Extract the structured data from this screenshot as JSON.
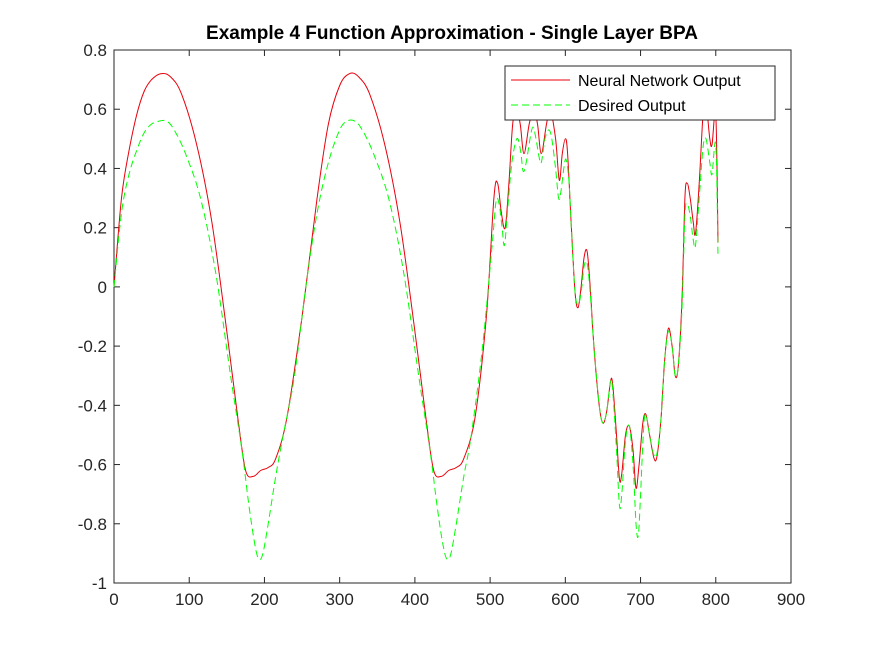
{
  "chart_data": {
    "type": "line",
    "title": "Example 4 Function Approximation - Single Layer BPA",
    "xlabel": "",
    "ylabel": "",
    "xlim": [
      0,
      900
    ],
    "ylim": [
      -1,
      0.8
    ],
    "xticks": [
      0,
      100,
      200,
      300,
      400,
      500,
      600,
      700,
      800,
      900
    ],
    "yticks": [
      -1,
      -0.8,
      -0.6,
      -0.4,
      -0.2,
      0,
      0.2,
      0.4,
      0.6,
      0.8
    ],
    "xtick_labels": [
      "0",
      "100",
      "200",
      "300",
      "400",
      "500",
      "600",
      "700",
      "800",
      "900"
    ],
    "ytick_labels": [
      "-1",
      "-0.8",
      "-0.6",
      "-0.4",
      "-0.2",
      "0",
      "0.2",
      "0.4",
      "0.6",
      "0.8"
    ],
    "grid": false,
    "legend": {
      "position": "top-right"
    },
    "series": [
      {
        "name": "Neural Network Output",
        "color": "#e8000b",
        "style": "solid",
        "points": [
          [
            0,
            0.0
          ],
          [
            10,
            0.3
          ],
          [
            20,
            0.46
          ],
          [
            30,
            0.58
          ],
          [
            40,
            0.66
          ],
          [
            50,
            0.7
          ],
          [
            62,
            0.72
          ],
          [
            75,
            0.71
          ],
          [
            90,
            0.65
          ],
          [
            110,
            0.48
          ],
          [
            130,
            0.22
          ],
          [
            150,
            -0.15
          ],
          [
            165,
            -0.45
          ],
          [
            175,
            -0.62
          ],
          [
            185,
            -0.64
          ],
          [
            195,
            -0.62
          ],
          [
            205,
            -0.61
          ],
          [
            215,
            -0.58
          ],
          [
            230,
            -0.44
          ],
          [
            250,
            -0.1
          ],
          [
            270,
            0.3
          ],
          [
            285,
            0.55
          ],
          [
            300,
            0.68
          ],
          [
            313,
            0.72
          ],
          [
            325,
            0.71
          ],
          [
            340,
            0.65
          ],
          [
            360,
            0.48
          ],
          [
            380,
            0.22
          ],
          [
            400,
            -0.15
          ],
          [
            415,
            -0.45
          ],
          [
            425,
            -0.62
          ],
          [
            435,
            -0.64
          ],
          [
            445,
            -0.62
          ],
          [
            455,
            -0.61
          ],
          [
            465,
            -0.58
          ],
          [
            480,
            -0.44
          ],
          [
            495,
            -0.1
          ],
          [
            505,
            0.3
          ],
          [
            510,
            0.35
          ],
          [
            515,
            0.25
          ],
          [
            520,
            0.2
          ],
          [
            525,
            0.35
          ],
          [
            530,
            0.55
          ],
          [
            535,
            0.6
          ],
          [
            540,
            0.55
          ],
          [
            545,
            0.45
          ],
          [
            552,
            0.55
          ],
          [
            558,
            0.6
          ],
          [
            563,
            0.55
          ],
          [
            568,
            0.45
          ],
          [
            575,
            0.55
          ],
          [
            580,
            0.6
          ],
          [
            587,
            0.5
          ],
          [
            592,
            0.36
          ],
          [
            596,
            0.45
          ],
          [
            600,
            0.5
          ],
          [
            603,
            0.45
          ],
          [
            608,
            0.2
          ],
          [
            613,
            -0.02
          ],
          [
            617,
            -0.07
          ],
          [
            621,
            0.0
          ],
          [
            625,
            0.1
          ],
          [
            629,
            0.12
          ],
          [
            633,
            0.0
          ],
          [
            638,
            -0.2
          ],
          [
            645,
            -0.4
          ],
          [
            650,
            -0.46
          ],
          [
            655,
            -0.42
          ],
          [
            660,
            -0.32
          ],
          [
            663,
            -0.33
          ],
          [
            668,
            -0.5
          ],
          [
            672,
            -0.65
          ],
          [
            675,
            -0.63
          ],
          [
            680,
            -0.5
          ],
          [
            685,
            -0.47
          ],
          [
            690,
            -0.55
          ],
          [
            694,
            -0.68
          ],
          [
            698,
            -0.6
          ],
          [
            703,
            -0.46
          ],
          [
            707,
            -0.43
          ],
          [
            712,
            -0.5
          ],
          [
            718,
            -0.58
          ],
          [
            722,
            -0.57
          ],
          [
            727,
            -0.45
          ],
          [
            732,
            -0.25
          ],
          [
            737,
            -0.14
          ],
          [
            742,
            -0.2
          ],
          [
            746,
            -0.3
          ],
          [
            750,
            -0.27
          ],
          [
            755,
            -0.05
          ],
          [
            759,
            0.3
          ],
          [
            762,
            0.35
          ],
          [
            766,
            0.3
          ],
          [
            770,
            0.22
          ],
          [
            773,
            0.18
          ],
          [
            778,
            0.35
          ],
          [
            783,
            0.58
          ],
          [
            787,
            0.62
          ],
          [
            792,
            0.5
          ],
          [
            795,
            0.48
          ],
          [
            800,
            0.58
          ],
          [
            803,
            0.15
          ]
        ]
      },
      {
        "name": "Desired Output",
        "color": "#00ff00",
        "style": "dashed",
        "points": [
          [
            0,
            0.0
          ],
          [
            10,
            0.25
          ],
          [
            20,
            0.38
          ],
          [
            30,
            0.46
          ],
          [
            40,
            0.52
          ],
          [
            50,
            0.55
          ],
          [
            60,
            0.56
          ],
          [
            70,
            0.56
          ],
          [
            80,
            0.53
          ],
          [
            95,
            0.45
          ],
          [
            115,
            0.3
          ],
          [
            135,
            0.05
          ],
          [
            155,
            -0.3
          ],
          [
            170,
            -0.55
          ],
          [
            180,
            -0.75
          ],
          [
            188,
            -0.88
          ],
          [
            193,
            -0.92
          ],
          [
            198,
            -0.9
          ],
          [
            205,
            -0.8
          ],
          [
            215,
            -0.64
          ],
          [
            225,
            -0.5
          ],
          [
            240,
            -0.3
          ],
          [
            255,
            0.0
          ],
          [
            270,
            0.25
          ],
          [
            285,
            0.42
          ],
          [
            300,
            0.53
          ],
          [
            310,
            0.56
          ],
          [
            320,
            0.56
          ],
          [
            330,
            0.53
          ],
          [
            345,
            0.45
          ],
          [
            365,
            0.3
          ],
          [
            385,
            0.05
          ],
          [
            405,
            -0.3
          ],
          [
            420,
            -0.55
          ],
          [
            430,
            -0.75
          ],
          [
            438,
            -0.88
          ],
          [
            443,
            -0.92
          ],
          [
            448,
            -0.9
          ],
          [
            455,
            -0.8
          ],
          [
            465,
            -0.64
          ],
          [
            475,
            -0.5
          ],
          [
            490,
            -0.2
          ],
          [
            503,
            0.15
          ],
          [
            508,
            0.29
          ],
          [
            512,
            0.28
          ],
          [
            516,
            0.2
          ],
          [
            519,
            0.14
          ],
          [
            523,
            0.25
          ],
          [
            528,
            0.4
          ],
          [
            533,
            0.48
          ],
          [
            537,
            0.5
          ],
          [
            541,
            0.45
          ],
          [
            544,
            0.39
          ],
          [
            548,
            0.42
          ],
          [
            553,
            0.5
          ],
          [
            557,
            0.54
          ],
          [
            561,
            0.5
          ],
          [
            565,
            0.44
          ],
          [
            568,
            0.42
          ],
          [
            573,
            0.5
          ],
          [
            578,
            0.53
          ],
          [
            582,
            0.5
          ],
          [
            587,
            0.4
          ],
          [
            591,
            0.3
          ],
          [
            594,
            0.32
          ],
          [
            598,
            0.4
          ],
          [
            601,
            0.43
          ],
          [
            605,
            0.35
          ],
          [
            609,
            0.15
          ],
          [
            613,
            -0.02
          ],
          [
            617,
            -0.06
          ],
          [
            621,
            -0.02
          ],
          [
            625,
            0.07
          ],
          [
            629,
            0.08
          ],
          [
            633,
            -0.02
          ],
          [
            638,
            -0.2
          ],
          [
            645,
            -0.4
          ],
          [
            650,
            -0.46
          ],
          [
            655,
            -0.42
          ],
          [
            660,
            -0.32
          ],
          [
            663,
            -0.35
          ],
          [
            668,
            -0.55
          ],
          [
            672,
            -0.74
          ],
          [
            675,
            -0.7
          ],
          [
            680,
            -0.52
          ],
          [
            685,
            -0.47
          ],
          [
            690,
            -0.6
          ],
          [
            694,
            -0.8
          ],
          [
            697,
            -0.84
          ],
          [
            700,
            -0.7
          ],
          [
            704,
            -0.48
          ],
          [
            707,
            -0.43
          ],
          [
            712,
            -0.5
          ],
          [
            718,
            -0.57
          ],
          [
            722,
            -0.56
          ],
          [
            727,
            -0.45
          ],
          [
            732,
            -0.25
          ],
          [
            737,
            -0.15
          ],
          [
            742,
            -0.2
          ],
          [
            746,
            -0.3
          ],
          [
            750,
            -0.27
          ],
          [
            755,
            -0.08
          ],
          [
            759,
            0.24
          ],
          [
            762,
            0.28
          ],
          [
            766,
            0.24
          ],
          [
            770,
            0.16
          ],
          [
            773,
            0.14
          ],
          [
            778,
            0.3
          ],
          [
            783,
            0.47
          ],
          [
            787,
            0.5
          ],
          [
            792,
            0.42
          ],
          [
            795,
            0.38
          ],
          [
            800,
            0.48
          ],
          [
            803,
            0.1
          ]
        ]
      }
    ]
  }
}
